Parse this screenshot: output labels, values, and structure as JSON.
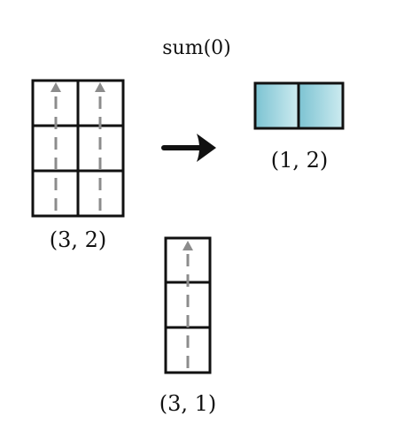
{
  "title": "sum(0)",
  "input_matrix": {
    "shape_label": "(3, 2)",
    "rows": 3,
    "cols": 2
  },
  "output_matrix": {
    "shape_label": "(1, 2)",
    "rows": 1,
    "cols": 2
  },
  "column_vector": {
    "shape_label": "(3, 1)",
    "rows": 3,
    "cols": 1
  },
  "colors": {
    "grid_stroke": "#111111",
    "reduction_arrow": "#8c8c8c",
    "output_fill_start": "#7cc3d2",
    "output_fill_end": "#cdebf0"
  },
  "icons": {
    "transform_arrow": "arrow-right-icon",
    "reduction_arrow": "dashed-arrow-up-icon"
  }
}
